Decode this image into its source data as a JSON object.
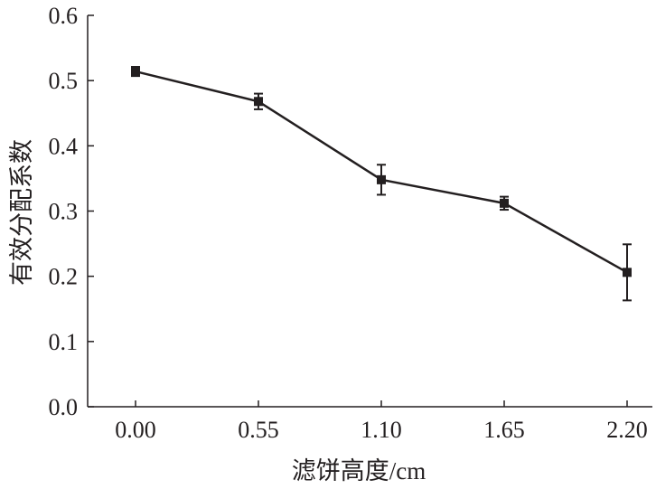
{
  "chart_data": {
    "type": "line",
    "title": "",
    "xlabel": "滤饼高度/cm",
    "ylabel": "有效分配系数",
    "x": [
      0.0,
      0.55,
      1.1,
      1.65,
      2.2
    ],
    "x_tick_labels": [
      "0.00",
      "0.55",
      "1.10",
      "1.65",
      "2.20"
    ],
    "y_tick_labels": [
      "0.0",
      "0.1",
      "0.2",
      "0.3",
      "0.4",
      "0.5",
      "0.6"
    ],
    "ylim": [
      0,
      0.6
    ],
    "grid": false,
    "series": [
      {
        "name": "有效分配系数",
        "values": [
          0.514,
          0.468,
          0.348,
          0.312,
          0.206
        ],
        "errors": [
          0.007,
          0.012,
          0.023,
          0.01,
          0.043
        ],
        "marker": "square",
        "color": "#231f20"
      }
    ]
  }
}
